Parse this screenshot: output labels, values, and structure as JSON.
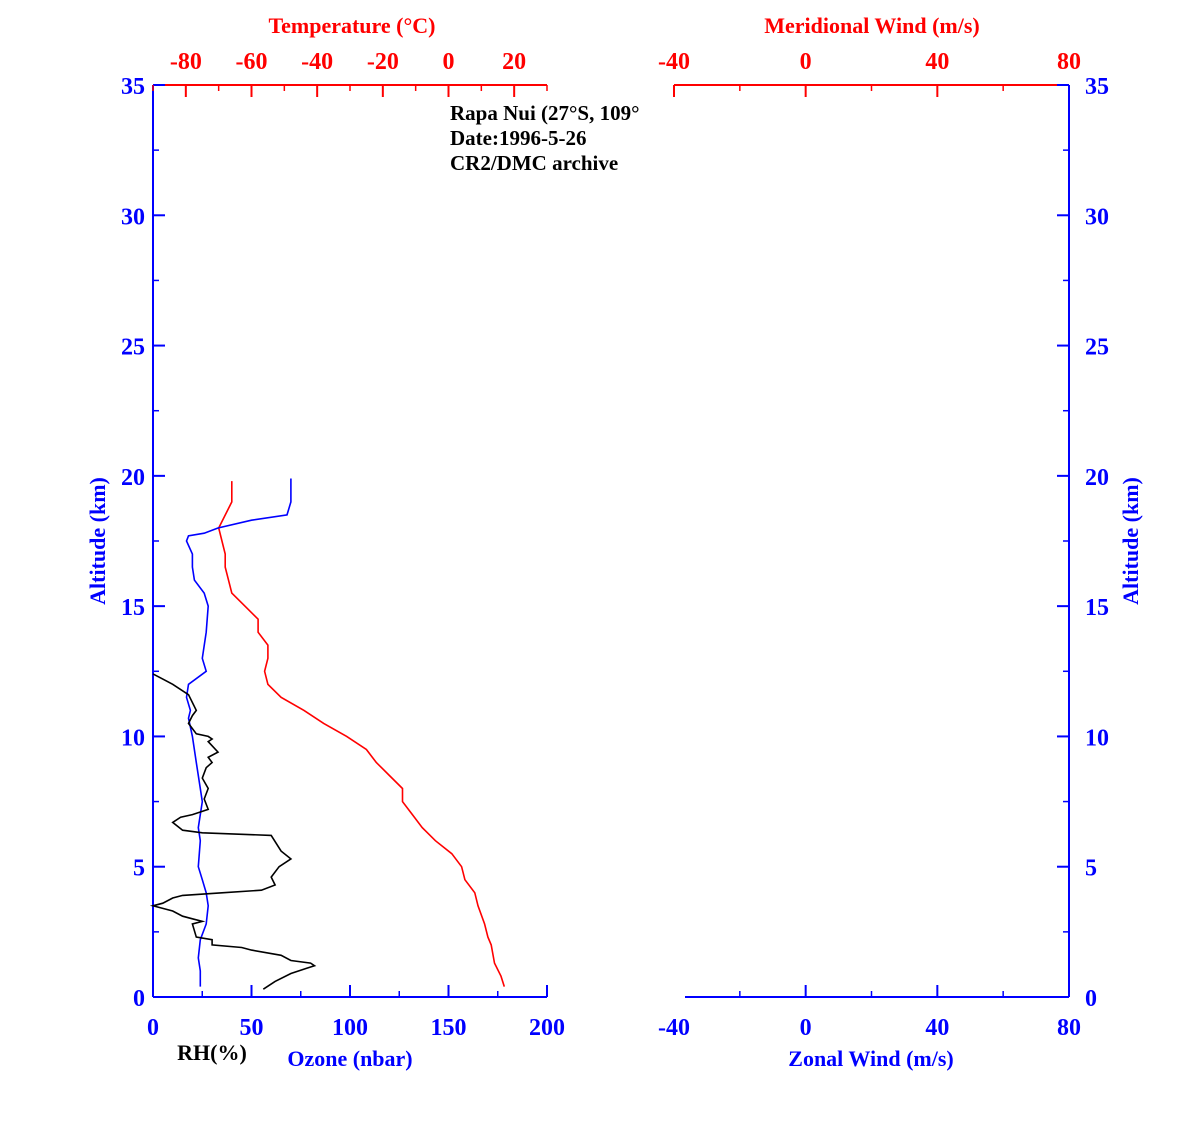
{
  "chart_data": [
    {
      "type": "line",
      "panel": "left",
      "annotation": [
        "Rapa Nui (27°S, 109°",
        "Date:1996-5-26",
        "CR2/DMC archive"
      ],
      "ylabel": "Altitude (km)",
      "ylim": [
        0,
        35
      ],
      "yticks": [
        0,
        5,
        10,
        15,
        20,
        25,
        30,
        35
      ],
      "x_bottom": {
        "label": "Ozone (nbar)",
        "secondary_label": "RH(%)",
        "lim": [
          0,
          200
        ],
        "ticks": [
          0,
          50,
          100,
          150,
          200
        ]
      },
      "x_top": {
        "label": "Temperature (°C)",
        "lim": [
          -90,
          30
        ],
        "ticks": [
          -80,
          -60,
          -40,
          -20,
          0,
          20
        ]
      },
      "colors": {
        "temperature": "#ff0000",
        "ozone": "#0000ff",
        "rh": "#000000",
        "axis": "#0000ff",
        "top_axis": "#ff0000"
      },
      "series": [
        {
          "key": "temperature",
          "axis": "top",
          "x": [
            17,
            16,
            14,
            13,
            12,
            11,
            9,
            8,
            5,
            4,
            1,
            -4,
            -8,
            -11,
            -14,
            -14,
            -18,
            -22,
            -25,
            -31,
            -38,
            -44,
            -51,
            -55,
            -56,
            -55,
            -55,
            -58,
            -58,
            -62,
            -66,
            -67,
            -68,
            -68,
            -70,
            -66,
            -66
          ],
          "y": [
            0.4,
            0.8,
            1.3,
            2.0,
            2.3,
            2.8,
            3.5,
            4.0,
            4.5,
            5.0,
            5.5,
            6.0,
            6.5,
            7.0,
            7.5,
            8.0,
            8.5,
            9.0,
            9.5,
            10.0,
            10.5,
            11.0,
            11.5,
            12.0,
            12.5,
            13.0,
            13.5,
            14.0,
            14.5,
            15.0,
            15.5,
            16.0,
            16.5,
            17.0,
            18.0,
            19.0,
            19.8
          ]
        },
        {
          "key": "ozone",
          "axis": "bottom",
          "x": [
            24,
            24,
            23,
            24,
            27,
            28,
            27,
            25,
            23,
            24,
            23,
            24,
            25,
            24,
            22,
            20,
            18,
            19,
            17,
            18,
            27,
            25,
            27,
            28,
            26,
            21,
            20,
            20,
            17,
            18,
            26,
            33,
            50,
            68,
            70,
            70
          ],
          "y": [
            0.4,
            1.0,
            1.5,
            2.2,
            2.8,
            3.5,
            4.0,
            4.5,
            5.0,
            6.0,
            6.5,
            7.0,
            7.5,
            8.0,
            9.0,
            10.0,
            10.7,
            11.0,
            11.5,
            12.0,
            12.5,
            13.0,
            14.0,
            15.0,
            15.5,
            16.0,
            16.5,
            17.0,
            17.5,
            17.7,
            17.8,
            18.0,
            18.3,
            18.5,
            19.0,
            19.9
          ]
        },
        {
          "key": "rh",
          "axis": "bottom",
          "x": [
            56,
            62,
            70,
            78,
            82,
            80,
            70,
            65,
            50,
            45,
            30,
            30,
            22,
            20,
            25,
            20,
            15,
            10,
            5,
            0,
            5,
            10,
            15,
            35,
            55,
            62,
            60,
            64,
            70,
            65,
            60,
            25,
            15,
            10,
            14,
            20,
            28,
            26,
            28,
            25,
            27,
            30,
            28,
            33,
            28,
            30,
            28,
            22,
            18,
            20,
            22,
            18,
            10,
            5,
            0
          ],
          "y": [
            0.3,
            0.6,
            0.9,
            1.1,
            1.2,
            1.3,
            1.4,
            1.6,
            1.8,
            1.9,
            2.0,
            2.2,
            2.3,
            2.8,
            2.9,
            3.0,
            3.1,
            3.3,
            3.4,
            3.5,
            3.6,
            3.8,
            3.9,
            4.0,
            4.1,
            4.3,
            4.6,
            5.0,
            5.3,
            5.6,
            6.2,
            6.3,
            6.4,
            6.7,
            6.9,
            7.0,
            7.2,
            7.6,
            8.0,
            8.4,
            8.8,
            9.0,
            9.2,
            9.4,
            9.8,
            9.9,
            10.0,
            10.1,
            10.5,
            10.8,
            11.0,
            11.6,
            12.0,
            12.2,
            12.4
          ]
        }
      ]
    },
    {
      "type": "line",
      "panel": "right",
      "ylabel": "Altitude (km)",
      "ylim": [
        0,
        35
      ],
      "yticks": [
        0,
        5,
        10,
        15,
        20,
        25,
        30,
        35
      ],
      "x_bottom": {
        "label": "Zonal Wind (m/s)",
        "lim": [
          -40,
          80
        ],
        "ticks": [
          -40,
          0,
          40,
          80
        ]
      },
      "x_top": {
        "label": "Meridional Wind (m/s)",
        "lim": [
          -40,
          80
        ],
        "ticks": [
          -40,
          0,
          40,
          80
        ]
      },
      "colors": {
        "axis": "#0000ff",
        "top_axis": "#ff0000"
      },
      "series": []
    }
  ]
}
